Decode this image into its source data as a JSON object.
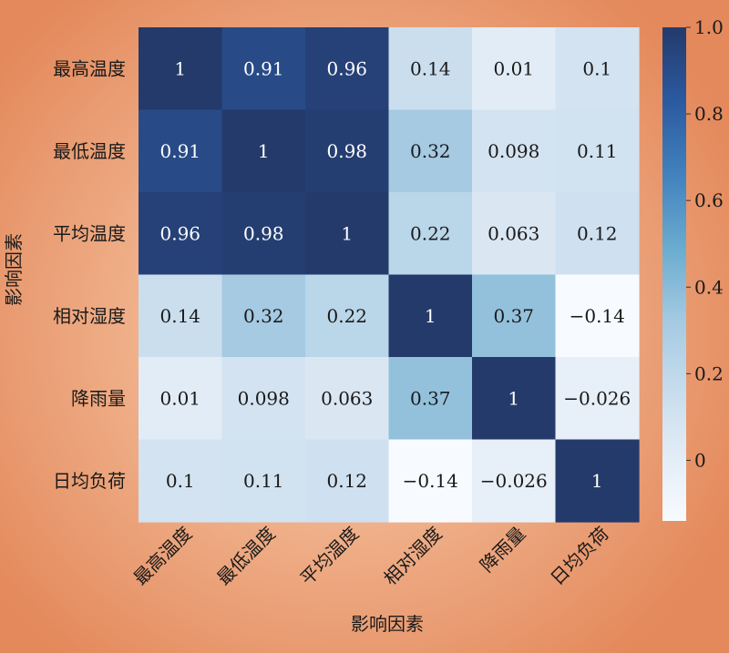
{
  "chart_data": {
    "type": "heatmap",
    "title": "",
    "xlabel": "影响因素",
    "ylabel": "影响因素",
    "x_categories": [
      "最高温度",
      "最低温度",
      "平均温度",
      "相对湿度",
      "降雨量",
      "日均负荷"
    ],
    "y_categories": [
      "最高温度",
      "最低温度",
      "平均温度",
      "相对湿度",
      "降雨量",
      "日均负荷"
    ],
    "values": [
      [
        1,
        0.91,
        0.96,
        0.14,
        0.01,
        0.1
      ],
      [
        0.91,
        1,
        0.98,
        0.32,
        0.098,
        0.11
      ],
      [
        0.96,
        0.98,
        1,
        0.22,
        0.063,
        0.12
      ],
      [
        0.14,
        0.32,
        0.22,
        1,
        0.37,
        -0.14
      ],
      [
        0.01,
        0.098,
        0.063,
        0.37,
        1,
        -0.026
      ],
      [
        0.1,
        0.11,
        0.12,
        -0.14,
        -0.026,
        1
      ]
    ],
    "value_labels": [
      [
        "1",
        "0.91",
        "0.96",
        "0.14",
        "0.01",
        "0.1"
      ],
      [
        "0.91",
        "1",
        "0.98",
        "0.32",
        "0.098",
        "0.11"
      ],
      [
        "0.96",
        "0.98",
        "1",
        "0.22",
        "0.063",
        "0.12"
      ],
      [
        "0.14",
        "0.32",
        "0.22",
        "1",
        "0.37",
        "−0.14"
      ],
      [
        "0.01",
        "0.098",
        "0.063",
        "0.37",
        "1",
        "−0.026"
      ],
      [
        "0.1",
        "0.11",
        "0.12",
        "−0.14",
        "−0.026",
        "1"
      ]
    ],
    "colorbar": {
      "range": [
        -0.14,
        1.0
      ],
      "ticks": [
        0,
        0.2,
        0.4,
        0.6,
        0.8,
        1.0
      ],
      "tick_labels": [
        "0",
        "0.2",
        "0.4",
        "0.6",
        "0.8",
        "1.0"
      ],
      "colormap": "Blues",
      "color_low": "#f7fbff",
      "color_high": "#243a6b"
    }
  }
}
